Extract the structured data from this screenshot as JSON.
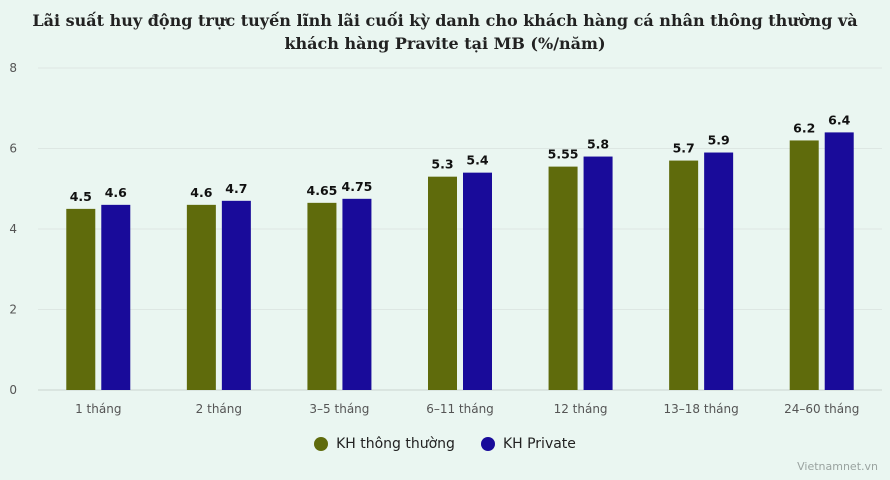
{
  "chart_data": {
    "type": "bar",
    "title": "Lãi suất huy động trực tuyến lĩnh lãi cuối kỳ danh cho khách hàng cá nhân thông thường và khách hàng Pravite tại MB (%/năm)",
    "categories": [
      "1 tháng",
      "2 tháng",
      "3–5 tháng",
      "6–11 tháng",
      "12 tháng",
      "13–18 tháng",
      "24–60 tháng"
    ],
    "series": [
      {
        "name": "KH thông thường",
        "values": [
          4.5,
          4.6,
          4.65,
          5.3,
          5.55,
          5.7,
          6.2
        ],
        "labels": [
          "4.5",
          "4.6",
          "4.65",
          "5.3",
          "5.55",
          "5.7",
          "6.2"
        ],
        "color": "#5f6b0c"
      },
      {
        "name": "KH Private",
        "values": [
          4.6,
          4.7,
          4.75,
          5.4,
          5.8,
          5.9,
          6.4
        ],
        "labels": [
          "4.6",
          "4.7",
          "4.75",
          "5.4",
          "5.8",
          "5.9",
          "6.4"
        ],
        "color": "#190b9a"
      }
    ],
    "ylim": [
      0,
      8
    ],
    "yticks": [
      "0",
      "2",
      "4",
      "6",
      "8"
    ],
    "grid": true,
    "legend_position": "bottom-center"
  },
  "source": "Vietnamnet.vn"
}
